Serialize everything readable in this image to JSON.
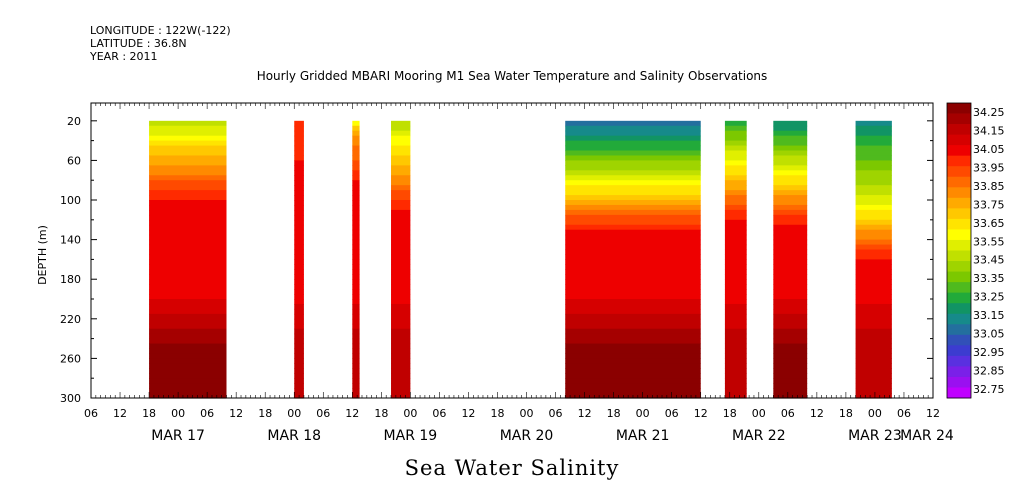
{
  "header": {
    "longitude": "LONGITUDE : 122W(-122)",
    "latitude": "LATITUDE : 36.8N",
    "year": "YEAR : 2011"
  },
  "chart_data": {
    "type": "heatmap",
    "title": "Hourly Gridded MBARI Mooring M1 Sea Water Temperature and Salinity Observations",
    "bottom_title": "Sea Water Salinity",
    "ylabel": "DEPTH (m)",
    "xlabel": "",
    "ylim": [
      300,
      2
    ],
    "x_range_hours": [
      0,
      174
    ],
    "yticks": [
      "20",
      "60",
      "100",
      "140",
      "180",
      "220",
      "260",
      "300"
    ],
    "ytick_values": [
      20,
      60,
      100,
      140,
      180,
      220,
      260,
      300
    ],
    "xtick_hours": [
      "06",
      "12",
      "18",
      "00",
      "06",
      "12",
      "18",
      "00",
      "06",
      "12",
      "18",
      "00",
      "06",
      "12",
      "18",
      "00",
      "06",
      "12",
      "18",
      "00",
      "06",
      "12",
      "18",
      "00",
      "06",
      "12",
      "18",
      "00",
      "06",
      "12",
      "18",
      "00",
      "06",
      "12",
      "18",
      "00"
    ],
    "date_labels": [
      "MAR 17",
      "MAR 18",
      "MAR 19",
      "MAR 20",
      "MAR 21",
      "MAR 22",
      "MAR 23",
      "MAR 24"
    ],
    "date_label_hours": [
      18,
      42,
      66,
      90,
      114,
      138,
      162,
      174
    ],
    "colorbar": {
      "labels": [
        "34.25",
        "34.15",
        "34.05",
        "33.95",
        "33.85",
        "33.75",
        "33.65",
        "33.55",
        "33.45",
        "33.35",
        "33.25",
        "33.15",
        "33.05",
        "32.95",
        "32.85",
        "32.75"
      ],
      "colors": [
        "#8b0000",
        "#a50000",
        "#c00000",
        "#d60000",
        "#ee0000",
        "#ff2a00",
        "#ff4a00",
        "#ff6a00",
        "#ff8a00",
        "#ffaa00",
        "#ffc800",
        "#ffe400",
        "#ffff00",
        "#e0ef00",
        "#c0e000",
        "#9fd400",
        "#7cc800",
        "#4fba1e",
        "#22aa3a",
        "#119464",
        "#168a8a",
        "#236f9e",
        "#3150b8",
        "#3c3cd0",
        "#5a30e0",
        "#7a20e8",
        "#9a10f0",
        "#c000ff"
      ],
      "max": 34.25,
      "min": 32.75
    },
    "segments": [
      {
        "start": 12,
        "end": 28,
        "surface": 33.45,
        "deep": 34.25,
        "thermocline": 50
      },
      {
        "start": 42,
        "end": 44,
        "surface": 33.95,
        "deep": 34.15,
        "thermocline": 30
      },
      {
        "start": 54,
        "end": 55.5,
        "surface": 33.55,
        "deep": 34.15,
        "thermocline": 30
      },
      {
        "start": 62,
        "end": 66,
        "surface": 33.45,
        "deep": 34.15,
        "thermocline": 60
      },
      {
        "start": 98,
        "end": 126,
        "surface": 33.05,
        "deep": 34.25,
        "thermocline": 75
      },
      {
        "start": 131,
        "end": 135.5,
        "surface": 33.25,
        "deep": 34.15,
        "thermocline": 65
      },
      {
        "start": 141,
        "end": 148,
        "surface": 33.15,
        "deep": 34.25,
        "thermocline": 70
      },
      {
        "start": 158,
        "end": 165.5,
        "surface": 33.15,
        "deep": 34.15,
        "thermocline": 105
      }
    ]
  }
}
